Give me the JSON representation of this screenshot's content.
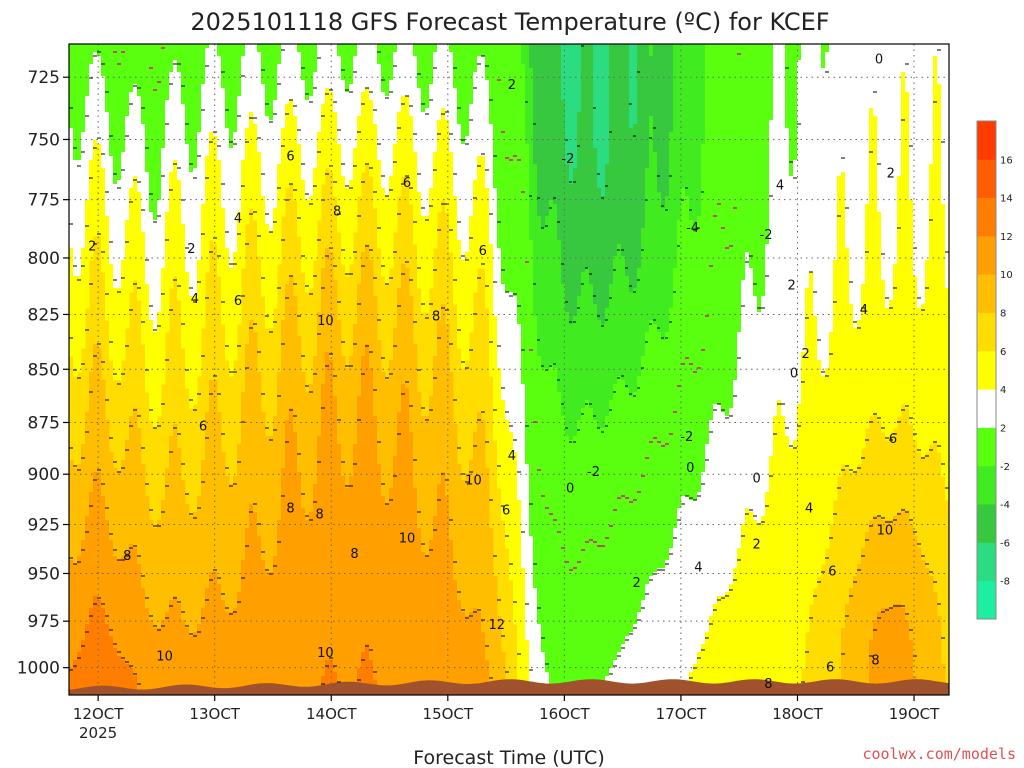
{
  "chart_data": {
    "type": "heatmap",
    "title": "2025101118 GFS Forecast Temperature (ºC) for KCEF",
    "xlabel": "Forecast Time (UTC)",
    "ylabel": "",
    "x_tick_labels": [
      "12OCT",
      "13OCT",
      "14OCT",
      "15OCT",
      "16OCT",
      "17OCT",
      "18OCT",
      "19OCT"
    ],
    "x_year_label": "2025",
    "x_range_days": [
      11.75,
      19.3
    ],
    "y_ticks": [
      725,
      750,
      775,
      800,
      825,
      850,
      875,
      900,
      925,
      950,
      975,
      1000
    ],
    "y_tick_labels": [
      "725",
      "750",
      "775",
      "800",
      "825",
      "850",
      "875",
      "900",
      "925",
      "950",
      "975",
      "1000"
    ],
    "y_range_hpa": [
      1015,
      712
    ],
    "y_scale": "log-pressure (inverted)",
    "colorbar": {
      "levels": [
        -10,
        -8,
        -6,
        -4,
        -2,
        2,
        4,
        6,
        8,
        10,
        12,
        14,
        16,
        18
      ],
      "tick_labels": [
        "-8",
        "-6",
        "-4",
        "-2",
        "2",
        "4",
        "6",
        "8",
        "10",
        "12",
        "14",
        "16"
      ],
      "colors": [
        "#1cf0a0",
        "#2cdc80",
        "#38c840",
        "#40ec20",
        "#5aff10",
        "#ffffff",
        "#ffff00",
        "#ffdd00",
        "#ffbf00",
        "#ff9f00",
        "#ff7e00",
        "#ff5d00",
        "#ff3c00"
      ]
    },
    "contour_interval_c": 2,
    "zero_contour_color": "#cc1f7a",
    "contour_labels": [
      {
        "t": 11.95,
        "p": 795,
        "v": "2"
      },
      {
        "t": 12.8,
        "p": 796,
        "v": "2"
      },
      {
        "t": 12.83,
        "p": 818,
        "v": "4"
      },
      {
        "t": 13.2,
        "p": 783,
        "v": "4"
      },
      {
        "t": 13.2,
        "p": 819,
        "v": "6"
      },
      {
        "t": 13.65,
        "p": 757,
        "v": "6"
      },
      {
        "t": 14.05,
        "p": 780,
        "v": "8"
      },
      {
        "t": 14.65,
        "p": 768,
        "v": "6"
      },
      {
        "t": 13.95,
        "p": 828,
        "v": "10"
      },
      {
        "t": 14.9,
        "p": 826,
        "v": "8"
      },
      {
        "t": 15.3,
        "p": 797,
        "v": "6"
      },
      {
        "t": 15.55,
        "p": 728,
        "v": "2"
      },
      {
        "t": 15.55,
        "p": 891,
        "v": "4"
      },
      {
        "t": 15.5,
        "p": 918,
        "v": "6"
      },
      {
        "t": 15.22,
        "p": 903,
        "v": "10"
      },
      {
        "t": 15.42,
        "p": 977,
        "v": "12"
      },
      {
        "t": 14.65,
        "p": 932,
        "v": "10"
      },
      {
        "t": 13.65,
        "p": 917,
        "v": "8"
      },
      {
        "t": 13.9,
        "p": 920,
        "v": "8"
      },
      {
        "t": 14.2,
        "p": 940,
        "v": "8"
      },
      {
        "t": 12.25,
        "p": 941,
        "v": "8"
      },
      {
        "t": 12.9,
        "p": 877,
        "v": "6"
      },
      {
        "t": 12.57,
        "p": 994,
        "v": "10"
      },
      {
        "t": 13.95,
        "p": 992,
        "v": "10"
      },
      {
        "t": 16.03,
        "p": 758,
        "v": "-2"
      },
      {
        "t": 16.05,
        "p": 907,
        "v": "0"
      },
      {
        "t": 16.25,
        "p": 899,
        "v": "-2"
      },
      {
        "t": 16.62,
        "p": 955,
        "v": "2"
      },
      {
        "t": 17.1,
        "p": 787,
        "v": "-4"
      },
      {
        "t": 17.05,
        "p": 882,
        "v": "-2"
      },
      {
        "t": 17.08,
        "p": 897,
        "v": "0"
      },
      {
        "t": 17.15,
        "p": 947,
        "v": "4"
      },
      {
        "t": 17.65,
        "p": 935,
        "v": "2"
      },
      {
        "t": 17.65,
        "p": 902,
        "v": "0"
      },
      {
        "t": 17.73,
        "p": 790,
        "v": "-2"
      },
      {
        "t": 17.85,
        "p": 769,
        "v": "4"
      },
      {
        "t": 17.95,
        "p": 812,
        "v": "2"
      },
      {
        "t": 17.97,
        "p": 852,
        "v": "0"
      },
      {
        "t": 18.07,
        "p": 843,
        "v": "2"
      },
      {
        "t": 17.75,
        "p": 1009,
        "v": "8"
      },
      {
        "t": 18.1,
        "p": 917,
        "v": "4"
      },
      {
        "t": 18.3,
        "p": 949,
        "v": "6"
      },
      {
        "t": 18.28,
        "p": 1000,
        "v": "6"
      },
      {
        "t": 18.67,
        "p": 996,
        "v": "8"
      },
      {
        "t": 18.75,
        "p": 928,
        "v": "10"
      },
      {
        "t": 18.57,
        "p": 823,
        "v": "4"
      },
      {
        "t": 18.8,
        "p": 764,
        "v": "2"
      },
      {
        "t": 18.82,
        "p": 883,
        "v": "6"
      },
      {
        "t": 18.7,
        "p": 718,
        "v": "0"
      }
    ],
    "watermark": "coolwx.com/models"
  }
}
